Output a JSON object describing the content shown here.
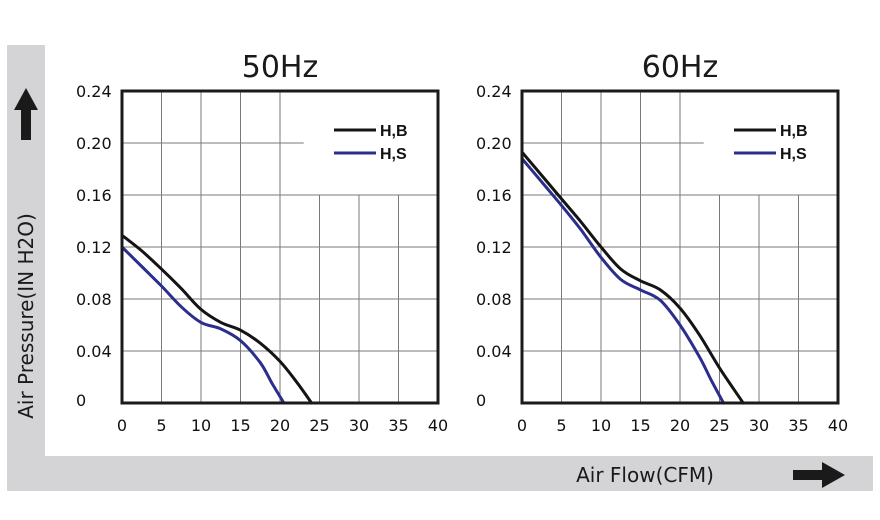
{
  "y_axis_title": "Air Pressure(IN H2O)",
  "x_axis_title": "Air Flow(CFM)",
  "colors": {
    "band": "#d4d4d6",
    "grid": "#7a7a7a",
    "frame": "#1a1a1a",
    "series_b": "#141414",
    "series_s": "#2b2e8c"
  },
  "icons": {
    "up": "arrow-up-icon",
    "right": "arrow-right-icon"
  },
  "chart_data": [
    {
      "type": "line",
      "title": "50Hz",
      "xlabel": "Air Flow(CFM)",
      "ylabel": "Air Pressure(IN H2O)",
      "xlim": [
        0,
        40
      ],
      "ylim": [
        0,
        0.24
      ],
      "x_ticks": [
        "0",
        "5",
        "10",
        "15",
        "20",
        "25",
        "30",
        "35",
        "40"
      ],
      "y_ticks": [
        "0",
        "0.04",
        "0.08",
        "0.12",
        "0.16",
        "0.20",
        "0.24"
      ],
      "grid": true,
      "legend": "top-right",
      "series": [
        {
          "name": "H,B",
          "color": "#141414",
          "points": [
            [
              0,
              0.129
            ],
            [
              2.5,
              0.117
            ],
            [
              5,
              0.103
            ],
            [
              7.5,
              0.088
            ],
            [
              10,
              0.072
            ],
            [
              12.5,
              0.062
            ],
            [
              15,
              0.056
            ],
            [
              17.5,
              0.046
            ],
            [
              20,
              0.032
            ],
            [
              22,
              0.017
            ],
            [
              24,
              0.0
            ]
          ]
        },
        {
          "name": "H,S",
          "color": "#2b2e8c",
          "points": [
            [
              0,
              0.12
            ],
            [
              2.5,
              0.105
            ],
            [
              5,
              0.09
            ],
            [
              7.5,
              0.074
            ],
            [
              10,
              0.062
            ],
            [
              12.5,
              0.057
            ],
            [
              15,
              0.048
            ],
            [
              17.5,
              0.031
            ],
            [
              19,
              0.015
            ],
            [
              20.5,
              0.0
            ]
          ]
        }
      ]
    },
    {
      "type": "line",
      "title": "60Hz",
      "xlabel": "Air Flow(CFM)",
      "ylabel": "Air Pressure(IN H2O)",
      "xlim": [
        0,
        40
      ],
      "ylim": [
        0,
        0.24
      ],
      "x_ticks": [
        "0",
        "5",
        "10",
        "15",
        "20",
        "25",
        "30",
        "35",
        "40"
      ],
      "y_ticks": [
        "0",
        "0.04",
        "0.08",
        "0.12",
        "0.16",
        "0.20",
        "0.24"
      ],
      "grid": true,
      "legend": "top-right",
      "series": [
        {
          "name": "H,B",
          "color": "#141414",
          "points": [
            [
              0,
              0.193
            ],
            [
              2.5,
              0.175
            ],
            [
              5,
              0.157
            ],
            [
              7.5,
              0.139
            ],
            [
              10,
              0.12
            ],
            [
              12.5,
              0.103
            ],
            [
              15,
              0.094
            ],
            [
              17.5,
              0.087
            ],
            [
              20,
              0.073
            ],
            [
              22.5,
              0.052
            ],
            [
              25,
              0.027
            ],
            [
              28,
              0.0
            ]
          ]
        },
        {
          "name": "H,S",
          "color": "#2b2e8c",
          "points": [
            [
              0,
              0.188
            ],
            [
              2.5,
              0.17
            ],
            [
              5,
              0.152
            ],
            [
              7.5,
              0.133
            ],
            [
              10,
              0.112
            ],
            [
              12.5,
              0.095
            ],
            [
              15,
              0.087
            ],
            [
              17.5,
              0.079
            ],
            [
              20,
              0.06
            ],
            [
              22.5,
              0.035
            ],
            [
              24,
              0.017
            ],
            [
              25.5,
              0.0
            ]
          ]
        }
      ]
    }
  ]
}
